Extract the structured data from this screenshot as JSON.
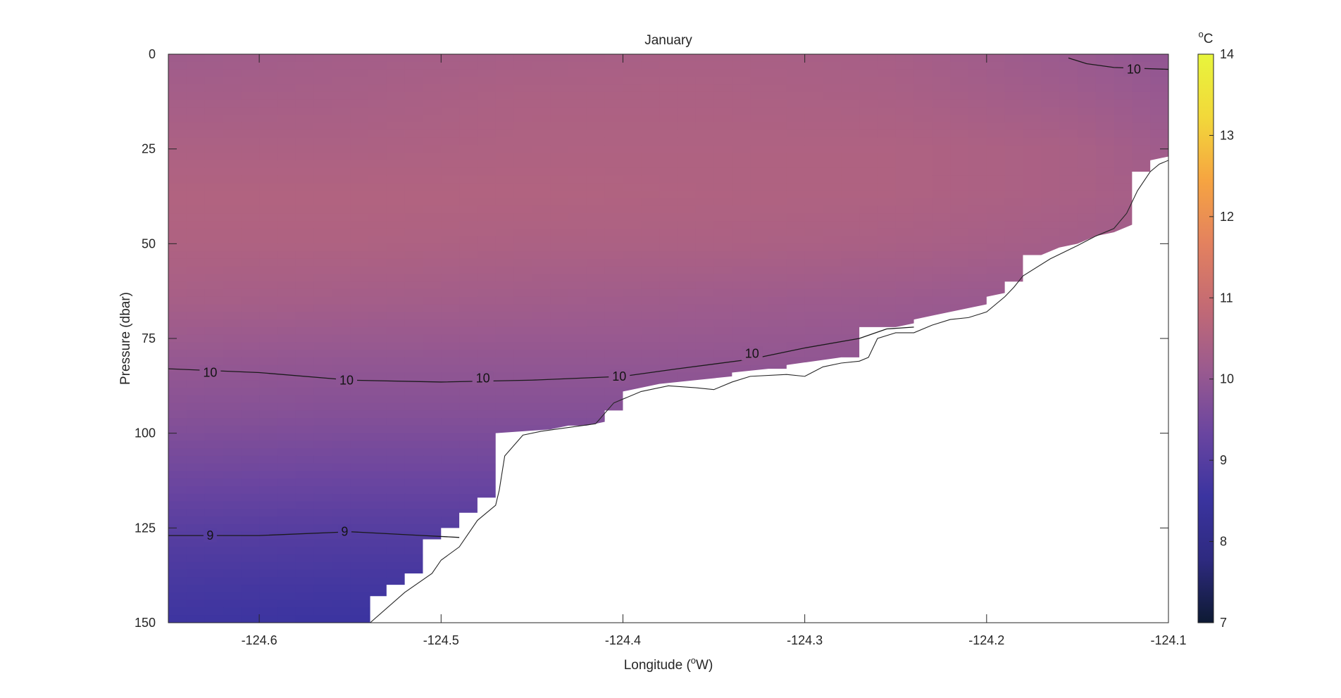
{
  "chart_data": {
    "type": "heatmap",
    "title": "January",
    "xlabel": "Longitude (",
    "xlabel_sup": "o",
    "xlabel_tail": "W)",
    "ylabel": "Pressure (dbar)",
    "xlim": [
      -124.65,
      -124.1
    ],
    "ylim": [
      0,
      150
    ],
    "x_ticks": [
      -124.6,
      -124.5,
      -124.4,
      -124.3,
      -124.2,
      -124.1
    ],
    "x_tick_labels": [
      "-124.6",
      "-124.5",
      "-124.4",
      "-124.3",
      "-124.2",
      "-124.1"
    ],
    "y_ticks": [
      0,
      25,
      50,
      75,
      100,
      125,
      150
    ],
    "y_tick_labels": [
      "0",
      "25",
      "50",
      "75",
      "100",
      "125",
      "150"
    ],
    "y_reversed": true,
    "colorbar": {
      "unit_sup": "o",
      "unit": "C",
      "range": [
        7,
        14
      ],
      "ticks": [
        7,
        8,
        9,
        10,
        11,
        12,
        13,
        14
      ],
      "tick_labels": [
        "7",
        "8",
        "9",
        "10",
        "11",
        "12",
        "13",
        "14"
      ],
      "colormap": [
        "#0d1a33",
        "#2e2a80",
        "#3b34a0",
        "#6a45a0",
        "#9a5a8f",
        "#c36a74",
        "#e3815f",
        "#f6a441",
        "#f2d83a",
        "#e8f53c"
      ]
    },
    "contours": [
      {
        "level": 10,
        "label": "10",
        "points": [
          [
            -124.65,
            83
          ],
          [
            -124.6,
            84
          ],
          [
            -124.55,
            86
          ],
          [
            -124.5,
            86.5
          ],
          [
            -124.45,
            86
          ],
          [
            -124.4,
            85
          ],
          [
            -124.37,
            83
          ],
          [
            -124.33,
            80.5
          ],
          [
            -124.3,
            77.5
          ],
          [
            -124.27,
            75
          ],
          [
            -124.255,
            72.5
          ],
          [
            -124.24,
            72
          ]
        ],
        "label_positions": [
          [
            -124.627,
            84
          ],
          [
            -124.552,
            86
          ],
          [
            -124.477,
            85.5
          ],
          [
            -124.402,
            85
          ],
          [
            -124.329,
            79
          ]
        ]
      },
      {
        "level": 10,
        "label": "10",
        "points": [
          [
            -124.155,
            1
          ],
          [
            -124.145,
            2.5
          ],
          [
            -124.13,
            3.5
          ],
          [
            -124.1,
            4
          ]
        ],
        "label_positions": [
          [
            -124.119,
            4
          ]
        ]
      },
      {
        "level": 9,
        "label": "9",
        "points": [
          [
            -124.65,
            127
          ],
          [
            -124.6,
            127
          ],
          [
            -124.55,
            126
          ],
          [
            -124.51,
            127
          ],
          [
            -124.49,
            127.5
          ]
        ],
        "label_positions": [
          [
            -124.627,
            127
          ],
          [
            -124.553,
            126
          ]
        ]
      }
    ],
    "bottom_profile": [
      [
        -124.539,
        150
      ],
      [
        -124.52,
        142
      ],
      [
        -124.505,
        137
      ],
      [
        -124.5,
        133.5
      ],
      [
        -124.49,
        130
      ],
      [
        -124.48,
        123
      ],
      [
        -124.47,
        119
      ],
      [
        -124.468,
        115
      ],
      [
        -124.465,
        106
      ],
      [
        -124.455,
        100.5
      ],
      [
        -124.445,
        99.5
      ],
      [
        -124.43,
        98.5
      ],
      [
        -124.415,
        97.5
      ],
      [
        -124.405,
        92
      ],
      [
        -124.39,
        89
      ],
      [
        -124.375,
        87.5
      ],
      [
        -124.36,
        88
      ],
      [
        -124.35,
        88.5
      ],
      [
        -124.34,
        86.5
      ],
      [
        -124.33,
        85
      ],
      [
        -124.31,
        84.5
      ],
      [
        -124.3,
        85
      ],
      [
        -124.29,
        82.5
      ],
      [
        -124.28,
        81.5
      ],
      [
        -124.27,
        81
      ],
      [
        -124.265,
        80
      ],
      [
        -124.26,
        75
      ],
      [
        -124.25,
        73.5
      ],
      [
        -124.24,
        73.5
      ],
      [
        -124.23,
        71.5
      ],
      [
        -124.22,
        70
      ],
      [
        -124.21,
        69.5
      ],
      [
        -124.2,
        68
      ],
      [
        -124.19,
        64
      ],
      [
        -124.185,
        61.5
      ],
      [
        -124.18,
        58.5
      ],
      [
        -124.165,
        54
      ],
      [
        -124.15,
        50.5
      ],
      [
        -124.14,
        48
      ],
      [
        -124.13,
        46
      ],
      [
        -124.123,
        42
      ],
      [
        -124.117,
        36
      ],
      [
        -124.11,
        31
      ],
      [
        -124.105,
        29
      ],
      [
        -124.1,
        28
      ]
    ],
    "data_mask_steps": [
      [
        -124.539,
        150
      ],
      [
        -124.539,
        143
      ],
      [
        -124.53,
        143
      ],
      [
        -124.53,
        140
      ],
      [
        -124.52,
        140
      ],
      [
        -124.52,
        137
      ],
      [
        -124.51,
        137
      ],
      [
        -124.51,
        128
      ],
      [
        -124.5,
        128
      ],
      [
        -124.5,
        125
      ],
      [
        -124.49,
        125
      ],
      [
        -124.49,
        121
      ],
      [
        -124.48,
        121
      ],
      [
        -124.48,
        117
      ],
      [
        -124.47,
        117
      ],
      [
        -124.47,
        100
      ],
      [
        -124.44,
        99
      ],
      [
        -124.43,
        98
      ],
      [
        -124.42,
        98
      ],
      [
        -124.41,
        97
      ],
      [
        -124.41,
        94
      ],
      [
        -124.4,
        94
      ],
      [
        -124.4,
        89
      ],
      [
        -124.38,
        87
      ],
      [
        -124.36,
        86
      ],
      [
        -124.34,
        85
      ],
      [
        -124.34,
        84
      ],
      [
        -124.32,
        83
      ],
      [
        -124.31,
        83
      ],
      [
        -124.31,
        82
      ],
      [
        -124.28,
        80
      ],
      [
        -124.27,
        80
      ],
      [
        -124.27,
        72
      ],
      [
        -124.25,
        72
      ],
      [
        -124.24,
        71
      ],
      [
        -124.24,
        70
      ],
      [
        -124.23,
        69
      ],
      [
        -124.22,
        68
      ],
      [
        -124.21,
        67
      ],
      [
        -124.2,
        66
      ],
      [
        -124.2,
        64
      ],
      [
        -124.19,
        63
      ],
      [
        -124.19,
        60
      ],
      [
        -124.18,
        60
      ],
      [
        -124.18,
        53
      ],
      [
        -124.17,
        53
      ],
      [
        -124.16,
        51
      ],
      [
        -124.15,
        50
      ],
      [
        -124.14,
        48
      ],
      [
        -124.13,
        47
      ],
      [
        -124.12,
        45
      ],
      [
        -124.12,
        31
      ],
      [
        -124.11,
        31
      ],
      [
        -124.11,
        28
      ],
      [
        -124.1,
        27
      ]
    ],
    "field_samples": {
      "columns": [
        -124.65,
        -124.55,
        -124.45,
        -124.35,
        -124.25,
        -124.15,
        -124.1
      ],
      "pressure": [
        0,
        10,
        25,
        37,
        50,
        65,
        80,
        95,
        110,
        125,
        140,
        150
      ],
      "temperature": [
        [
          10.2,
          10.3,
          10.35,
          10.4,
          10.35,
          10.1,
          9.95
        ],
        [
          10.3,
          10.35,
          10.45,
          10.45,
          10.4,
          10.2,
          10.05
        ],
        [
          10.45,
          10.45,
          10.5,
          10.5,
          10.5,
          10.4,
          10.2
        ],
        [
          10.55,
          10.55,
          10.55,
          10.52,
          10.5,
          10.4,
          10.3
        ],
        [
          10.5,
          10.5,
          10.45,
          10.45,
          10.4,
          10.3,
          10.2
        ],
        [
          10.35,
          10.3,
          10.25,
          10.2,
          10.15,
          10.05,
          10.0
        ],
        [
          10.05,
          10.0,
          10.0,
          10.0,
          9.95,
          9.9,
          9.9
        ],
        [
          9.8,
          9.75,
          9.75,
          9.75,
          9.75,
          9.7,
          9.7
        ],
        [
          9.45,
          9.4,
          9.4,
          9.4,
          9.4,
          9.4,
          9.4
        ],
        [
          9.05,
          9.0,
          9.0,
          9.0,
          9.0,
          9.0,
          9.0
        ],
        [
          8.75,
          8.7,
          8.7,
          8.7,
          8.7,
          8.7,
          8.7
        ],
        [
          8.6,
          8.55,
          8.55,
          8.55,
          8.55,
          8.55,
          8.55
        ]
      ]
    },
    "grid": false
  }
}
